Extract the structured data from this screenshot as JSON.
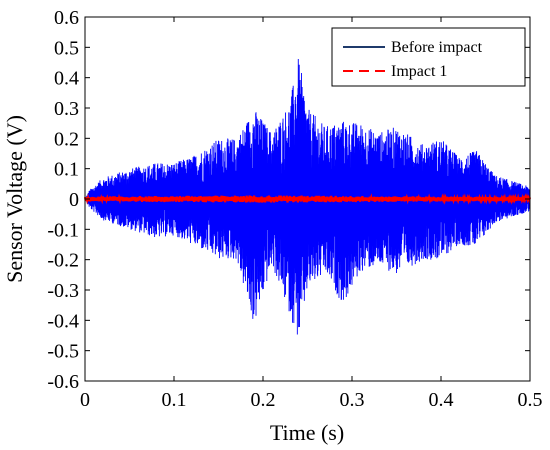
{
  "chart_data": {
    "type": "line",
    "xlabel": "Time (s)",
    "ylabel": "Sensor Voltage (V)",
    "xlim": [
      0,
      0.5
    ],
    "ylim": [
      -0.6,
      0.6
    ],
    "xticks": [
      0,
      0.1,
      0.2,
      0.3,
      0.4,
      0.5
    ],
    "xtick_labels": [
      "0",
      "0.1",
      "0.2",
      "0.3",
      "0.4",
      "0.5"
    ],
    "yticks": [
      -0.6,
      -0.5,
      -0.4,
      -0.3,
      -0.2,
      -0.1,
      0,
      0.1,
      0.2,
      0.3,
      0.4,
      0.5,
      0.6
    ],
    "ytick_labels": [
      "-0.6",
      "-0.5",
      "-0.4",
      "-0.3",
      "-0.2",
      "-0.1",
      "0",
      "0.1",
      "0.2",
      "0.3",
      "0.4",
      "0.5",
      "0.6"
    ],
    "grid": false,
    "legend_position": "top-right",
    "series": [
      {
        "name": "Before impact",
        "color": "#0000ff",
        "legend_color": "#1f3a6b",
        "line_style": "solid",
        "envelope": {
          "t": [
            0,
            0.005,
            0.02,
            0.05,
            0.08,
            0.1,
            0.12,
            0.15,
            0.17,
            0.19,
            0.21,
            0.23,
            0.24,
            0.25,
            0.27,
            0.29,
            0.31,
            0.33,
            0.35,
            0.38,
            0.4,
            0.42,
            0.44,
            0.46,
            0.48,
            0.5
          ],
          "upper": [
            0,
            0.03,
            0.07,
            0.1,
            0.12,
            0.12,
            0.14,
            0.2,
            0.2,
            0.3,
            0.22,
            0.32,
            0.47,
            0.3,
            0.24,
            0.26,
            0.25,
            0.22,
            0.24,
            0.18,
            0.2,
            0.14,
            0.16,
            0.08,
            0.06,
            0.04
          ],
          "lower": [
            0,
            -0.03,
            -0.07,
            -0.1,
            -0.13,
            -0.12,
            -0.15,
            -0.2,
            -0.2,
            -0.42,
            -0.22,
            -0.38,
            -0.47,
            -0.3,
            -0.25,
            -0.35,
            -0.24,
            -0.22,
            -0.25,
            -0.2,
            -0.2,
            -0.15,
            -0.16,
            -0.08,
            -0.06,
            -0.04
          ]
        }
      },
      {
        "name": "Impact 1",
        "color": "#ff0000",
        "line_style": "dashed",
        "envelope": {
          "t": [
            0,
            0.1,
            0.2,
            0.3,
            0.4,
            0.5
          ],
          "upper": [
            0.008,
            0.01,
            0.012,
            0.01,
            0.008,
            0.006
          ],
          "lower": [
            -0.008,
            -0.01,
            -0.012,
            -0.01,
            -0.008,
            -0.006
          ]
        }
      }
    ]
  }
}
